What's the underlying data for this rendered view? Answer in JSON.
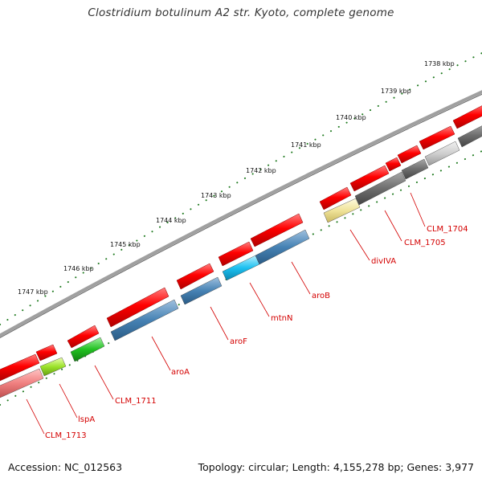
{
  "title": "Clostridium botulinum A2 str. Kyoto, complete genome",
  "footer": {
    "accession": "Accession: NC_012563",
    "summary": "Topology: circular; Length: 4,155,278 bp; Genes: 3,977"
  },
  "colors": {
    "backbone": "#8a8a8a",
    "tick": "#1f7a1f",
    "forward_gene": "#e60000",
    "label": "#d40000"
  },
  "kbp_ticks": [
    "1738 kbp",
    "1739 kbp",
    "1740 kbp",
    "1741 kbp",
    "1742 kbp",
    "1743 kbp",
    "1744 kbp",
    "1745 kbp",
    "1746 kbp",
    "1747 kbp"
  ],
  "gene_labels": [
    "CLM_1704",
    "CLM_1705",
    "divIVA",
    "aroB",
    "mtnN",
    "aroF",
    "aroA",
    "CLM_1711",
    "lspA",
    "CLM_1713"
  ]
}
